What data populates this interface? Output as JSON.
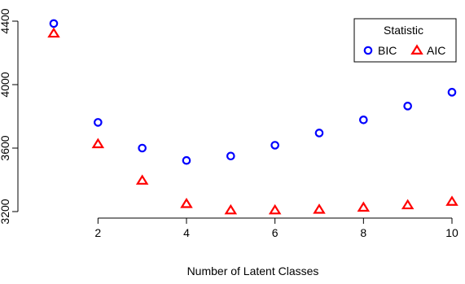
{
  "chart_data": {
    "type": "scatter",
    "title": "",
    "xlabel": "Number of Latent Classes",
    "ylabel": "",
    "x": [
      1,
      2,
      3,
      4,
      5,
      6,
      7,
      8,
      9,
      10
    ],
    "xlim": [
      1,
      10
    ],
    "ylim": [
      3200,
      4400
    ],
    "xticks": [
      2,
      4,
      6,
      8,
      10
    ],
    "yticks": [
      3200,
      3600,
      4000,
      4400
    ],
    "grid": false,
    "legend": {
      "title": "Statistic",
      "placement": "top-right"
    },
    "series": [
      {
        "name": "BIC",
        "marker": "circle",
        "color": "#0000ff",
        "values": [
          4385,
          3762,
          3600,
          3522,
          3550,
          3618,
          3695,
          3778,
          3865,
          3952
        ]
      },
      {
        "name": "AIC",
        "marker": "triangle",
        "color": "#ff0000",
        "values": [
          4322,
          3625,
          3395,
          3248,
          3208,
          3208,
          3212,
          3225,
          3240,
          3262
        ]
      }
    ]
  }
}
